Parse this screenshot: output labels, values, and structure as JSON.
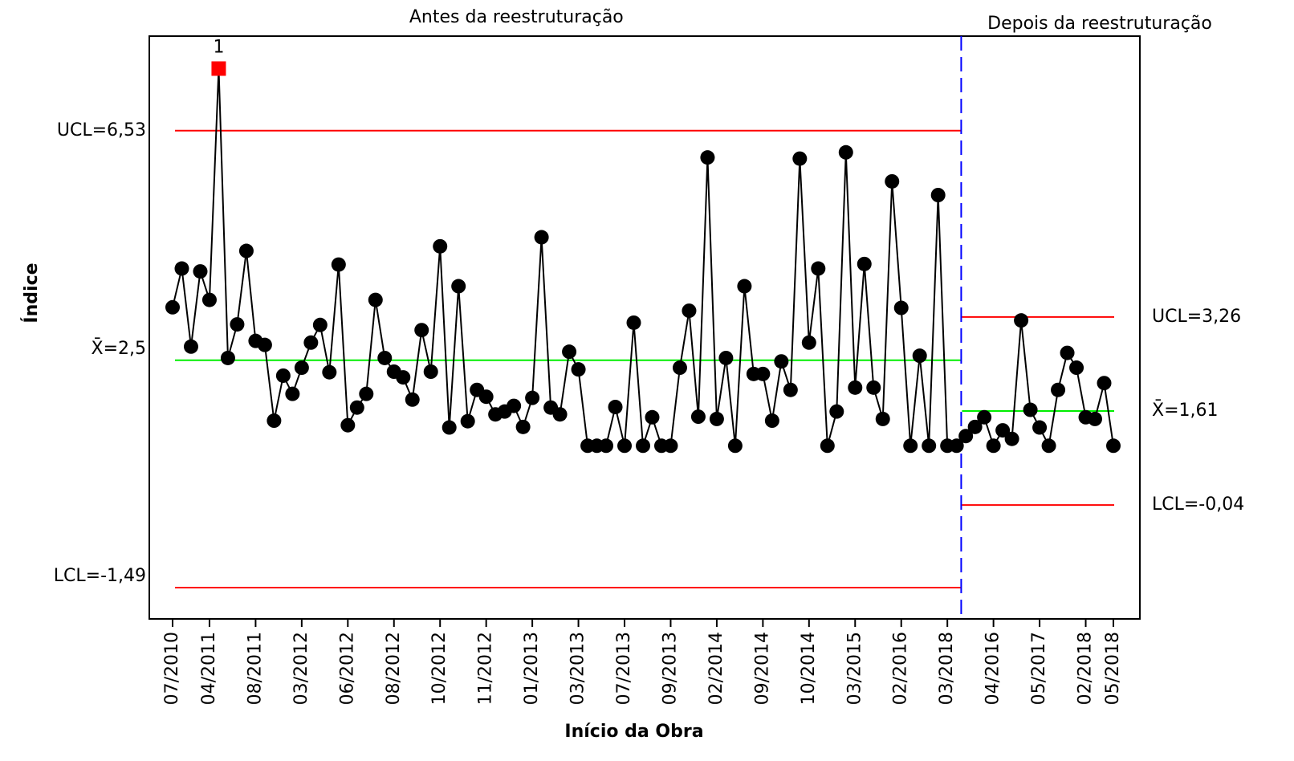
{
  "chart_data": {
    "type": "control",
    "x_label": "Início da Obra",
    "y_label": "Índice",
    "ylim": [
      -2.04,
      8.19
    ],
    "categories": [
      "07/2010",
      null,
      null,
      null,
      "04/2011",
      null,
      null,
      null,
      null,
      "08/2011",
      null,
      null,
      null,
      null,
      "03/2012",
      null,
      null,
      null,
      null,
      "06/2012",
      null,
      null,
      null,
      null,
      "08/2012",
      null,
      null,
      null,
      null,
      "10/2012",
      null,
      null,
      null,
      null,
      "11/2012",
      null,
      null,
      null,
      null,
      "01/2013",
      null,
      null,
      null,
      null,
      "03/2013",
      null,
      null,
      null,
      null,
      "07/2013",
      null,
      null,
      null,
      null,
      "09/2013",
      null,
      null,
      null,
      null,
      "02/2014",
      null,
      null,
      null,
      null,
      "09/2014",
      null,
      null,
      null,
      null,
      "10/2014",
      null,
      null,
      null,
      null,
      "03/2015",
      null,
      null,
      null,
      null,
      "02/2016",
      null,
      null,
      null,
      null,
      "03/2018",
      null,
      null,
      null,
      null,
      "04/2016",
      null,
      null,
      null,
      null,
      "05/2017",
      null,
      null,
      null,
      null,
      "02/2018",
      null,
      null,
      "05/2018"
    ],
    "values": [
      3.43,
      4.11,
      2.74,
      4.06,
      3.56,
      7.62,
      2.54,
      3.13,
      4.42,
      2.84,
      2.77,
      1.44,
      2.23,
      1.91,
      2.37,
      2.81,
      3.12,
      2.29,
      4.18,
      1.36,
      1.67,
      1.91,
      3.56,
      2.54,
      2.3,
      2.2,
      1.81,
      3.03,
      2.3,
      4.5,
      1.32,
      3.8,
      1.43,
      1.98,
      1.86,
      1.55,
      1.6,
      1.7,
      1.33,
      1.84,
      4.66,
      1.67,
      1.55,
      2.65,
      2.34,
      1.0,
      1.0,
      1.0,
      1.68,
      1.0,
      3.16,
      1.0,
      1.5,
      1.0,
      1.0,
      2.37,
      3.37,
      1.51,
      6.06,
      1.47,
      2.54,
      1.0,
      3.8,
      2.26,
      2.26,
      1.44,
      2.48,
      1.98,
      6.04,
      2.81,
      4.11,
      1.0,
      1.6,
      6.15,
      2.02,
      4.19,
      2.02,
      1.47,
      5.64,
      3.42,
      1.0,
      2.58,
      1.0,
      5.4,
      1.0,
      1.0,
      1.17,
      1.33,
      1.5,
      1.0,
      1.27,
      1.12,
      3.2,
      1.63,
      1.32,
      1.0,
      1.98,
      2.63,
      2.37,
      1.5,
      1.47,
      2.1,
      1.0
    ],
    "color": "#000000",
    "flag_color": "#ff0000",
    "flags": [
      {
        "point": 5,
        "text": "1"
      }
    ],
    "phases": [
      {
        "name": "Antes da reestruturação",
        "start": 0,
        "end": 85,
        "ucl": {
          "value": 6.53,
          "label": "UCL=6,53"
        },
        "mean": {
          "value": 2.5,
          "label": "X̄=2,5"
        },
        "lcl": {
          "value": -1.49,
          "label": "LCL=-1,49"
        }
      },
      {
        "name": "Depois da reestruturação",
        "start": 86,
        "end": 102,
        "ucl": {
          "value": 3.26,
          "label": "UCL=3,26"
        },
        "mean": {
          "value": 1.61,
          "label": "X̄=1,61"
        },
        "lcl": {
          "value": -0.04,
          "label": "LCL=-0,04"
        }
      }
    ],
    "limit_color": "#ff0000",
    "mean_color": "#00ee00",
    "divider_color": "#0000ff"
  }
}
